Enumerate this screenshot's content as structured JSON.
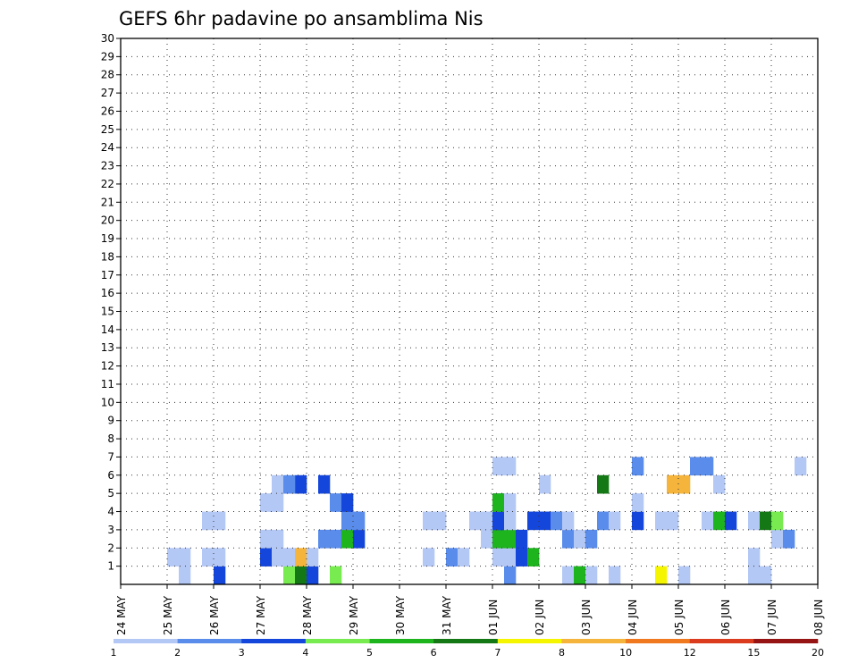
{
  "chart_data": {
    "type": "heatmap",
    "title": "GEFS 6hr padavine po ansamblima Nis",
    "xlabel": "",
    "ylabel": "",
    "x_ticks": [
      "24 MAY",
      "25 MAY",
      "26 MAY",
      "27 MAY",
      "28 MAY",
      "29 MAY",
      "30 MAY",
      "31 MAY",
      "01 JUN",
      "02 JUN",
      "03 JUN",
      "04 JUN",
      "05 JUN",
      "06 JUN",
      "07 JUN",
      "08 JUN"
    ],
    "y_ticks": [
      1,
      2,
      3,
      4,
      5,
      6,
      7,
      8,
      9,
      10,
      11,
      12,
      13,
      14,
      15,
      16,
      17,
      18,
      19,
      20,
      21,
      22,
      23,
      24,
      25,
      26,
      27,
      28,
      29,
      30
    ],
    "x_range_days": [
      0,
      15
    ],
    "steps_per_day": 4,
    "y_range": [
      0,
      30
    ],
    "grid": "dotted",
    "colorbar_labels": [
      "1",
      "2",
      "3",
      "4",
      "5",
      "6",
      "7",
      "8",
      "10",
      "12",
      "15",
      "20"
    ],
    "colorbar_colors": [
      "#b4c8f5",
      "#5a8ceb",
      "#1446dc",
      "#78eb50",
      "#1eb41e",
      "#147814",
      "#f5f500",
      "#f5b43c",
      "#f0781e",
      "#dc3c1e",
      "#961414"
    ],
    "cells_format": "[member, day_index, six_hour_step, precip_class]",
    "cells": [
      [
        1,
        1,
        1,
        1
      ],
      [
        1,
        2,
        0,
        3
      ],
      [
        1,
        3,
        2,
        4
      ],
      [
        1,
        3,
        3,
        6
      ],
      [
        1,
        3,
        4,
        3
      ],
      [
        1,
        4,
        2,
        4
      ],
      [
        1,
        8,
        1,
        2
      ],
      [
        1,
        9,
        2,
        1
      ],
      [
        1,
        9,
        3,
        5
      ],
      [
        1,
        10,
        0,
        1
      ],
      [
        1,
        10,
        2,
        1
      ],
      [
        1,
        11,
        2,
        7
      ],
      [
        1,
        11,
        4,
        1
      ],
      [
        1,
        13,
        2,
        1
      ],
      [
        1,
        13,
        3,
        1
      ],
      [
        2,
        1,
        0,
        1
      ],
      [
        2,
        1,
        1,
        1
      ],
      [
        2,
        1,
        3,
        1
      ],
      [
        2,
        2,
        0,
        1
      ],
      [
        2,
        3,
        0,
        3
      ],
      [
        2,
        3,
        1,
        1
      ],
      [
        2,
        3,
        2,
        1
      ],
      [
        2,
        3,
        3,
        8
      ],
      [
        2,
        4,
        0,
        1
      ],
      [
        2,
        6,
        2,
        1
      ],
      [
        2,
        7,
        0,
        2
      ],
      [
        2,
        7,
        1,
        1
      ],
      [
        2,
        8,
        0,
        1
      ],
      [
        2,
        8,
        1,
        1
      ],
      [
        2,
        8,
        2,
        3
      ],
      [
        2,
        8,
        3,
        5
      ],
      [
        2,
        13,
        2,
        1
      ],
      [
        3,
        3,
        0,
        1
      ],
      [
        3,
        3,
        1,
        1
      ],
      [
        3,
        4,
        1,
        2
      ],
      [
        3,
        4,
        2,
        2
      ],
      [
        3,
        4,
        3,
        5
      ],
      [
        3,
        5,
        0,
        3
      ],
      [
        3,
        7,
        3,
        1
      ],
      [
        3,
        8,
        0,
        5
      ],
      [
        3,
        8,
        1,
        5
      ],
      [
        3,
        8,
        2,
        3
      ],
      [
        3,
        9,
        2,
        2
      ],
      [
        3,
        9,
        3,
        1
      ],
      [
        3,
        10,
        0,
        2
      ],
      [
        3,
        13,
        4,
        1
      ],
      [
        3,
        14,
        1,
        2
      ],
      [
        4,
        1,
        3,
        1
      ],
      [
        4,
        2,
        0,
        1
      ],
      [
        4,
        4,
        3,
        2
      ],
      [
        4,
        5,
        0,
        2
      ],
      [
        4,
        6,
        2,
        1
      ],
      [
        4,
        6,
        3,
        1
      ],
      [
        4,
        7,
        2,
        1
      ],
      [
        4,
        7,
        3,
        1
      ],
      [
        4,
        7,
        4,
        3
      ],
      [
        4,
        8,
        0,
        3
      ],
      [
        4,
        8,
        1,
        1
      ],
      [
        4,
        8,
        3,
        3
      ],
      [
        4,
        8,
        4,
        3
      ],
      [
        4,
        9,
        1,
        2
      ],
      [
        4,
        9,
        2,
        1
      ],
      [
        4,
        10,
        1,
        2
      ],
      [
        4,
        10,
        2,
        1
      ],
      [
        4,
        11,
        0,
        3
      ],
      [
        4,
        11,
        2,
        1
      ],
      [
        4,
        11,
        3,
        1
      ],
      [
        4,
        12,
        2,
        1
      ],
      [
        4,
        12,
        3,
        5
      ],
      [
        4,
        12,
        4,
        3
      ],
      [
        4,
        13,
        2,
        1
      ],
      [
        4,
        13,
        3,
        6
      ],
      [
        4,
        13,
        4,
        4
      ],
      [
        5,
        3,
        0,
        1
      ],
      [
        5,
        3,
        1,
        1
      ],
      [
        5,
        4,
        2,
        2
      ],
      [
        5,
        4,
        3,
        3
      ],
      [
        5,
        7,
        4,
        2
      ],
      [
        5,
        8,
        0,
        5
      ],
      [
        5,
        8,
        1,
        1
      ],
      [
        5,
        11,
        0,
        1
      ],
      [
        6,
        3,
        3,
        3
      ],
      [
        6,
        3,
        1,
        1
      ],
      [
        6,
        3,
        2,
        2
      ],
      [
        6,
        4,
        1,
        3
      ],
      [
        6,
        8,
        4,
        1
      ],
      [
        6,
        10,
        1,
        6
      ],
      [
        6,
        11,
        4,
        8
      ],
      [
        6,
        11,
        3,
        8
      ],
      [
        6,
        12,
        3,
        1
      ],
      [
        7,
        8,
        0,
        1
      ],
      [
        7,
        8,
        1,
        1
      ],
      [
        7,
        10,
        4,
        2
      ],
      [
        7,
        12,
        1,
        2
      ],
      [
        7,
        12,
        2,
        2
      ],
      [
        7,
        14,
        2,
        1
      ]
    ]
  }
}
